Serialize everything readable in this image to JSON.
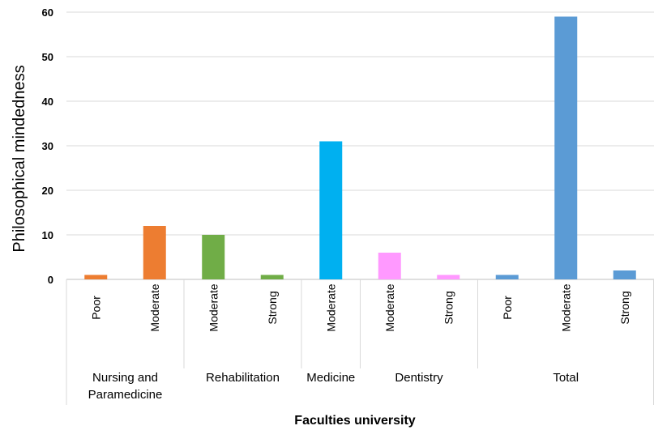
{
  "chart_data": {
    "type": "bar",
    "title": "",
    "xlabel": "Faculties university",
    "ylabel": "Philosophical mindedness",
    "ylim": [
      0,
      60
    ],
    "yticks": [
      0,
      10,
      20,
      30,
      40,
      50,
      60
    ],
    "grid": true,
    "legend": "none",
    "groups": [
      {
        "name": "Nursing and Paramedicine",
        "name_lines": [
          "Nursing and",
          "Paramedicine"
        ],
        "color": "#ED7D31",
        "bars": [
          {
            "label": "Poor",
            "value": 1
          },
          {
            "label": "Moderate",
            "value": 12
          }
        ]
      },
      {
        "name": "Rehabilitation",
        "name_lines": [
          "Rehabilitation"
        ],
        "color": "#70AD47",
        "bars": [
          {
            "label": "Moderate",
            "value": 10
          },
          {
            "label": "Strong",
            "value": 1
          }
        ]
      },
      {
        "name": "Medicine",
        "name_lines": [
          "Medicine"
        ],
        "color": "#00B0F0",
        "bars": [
          {
            "label": "Moderate",
            "value": 31
          }
        ]
      },
      {
        "name": "Dentistry",
        "name_lines": [
          "Dentistry"
        ],
        "color": "#FF99FF",
        "bars": [
          {
            "label": "Moderate",
            "value": 6
          },
          {
            "label": "Strong",
            "value": 1
          }
        ]
      },
      {
        "name": "Total",
        "name_lines": [
          "Total"
        ],
        "color": "#5B9BD5",
        "bars": [
          {
            "label": "Poor",
            "value": 1
          },
          {
            "label": "Moderate",
            "value": 59
          },
          {
            "label": "Strong",
            "value": 2
          }
        ]
      }
    ]
  }
}
